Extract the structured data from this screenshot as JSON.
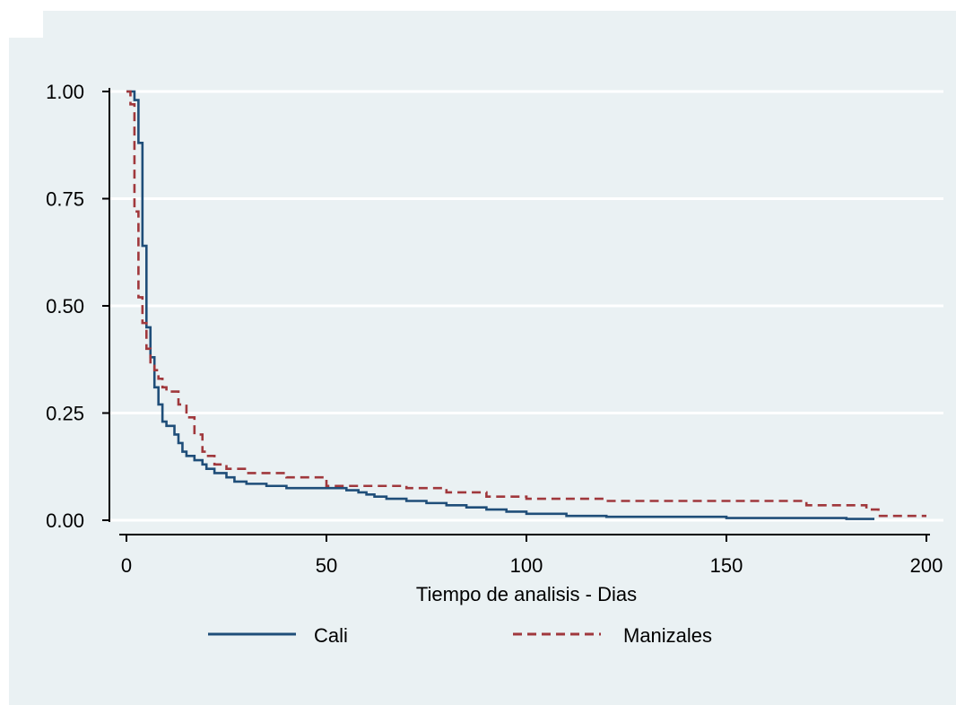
{
  "chart_data": {
    "type": "line",
    "title": "",
    "xlabel": "Tiempo de analisis - Dias",
    "ylabel": "",
    "xlim": [
      0,
      200
    ],
    "ylim": [
      0,
      1
    ],
    "x_ticks": [
      "0",
      "50",
      "100",
      "150",
      "200"
    ],
    "y_ticks": [
      "0.00",
      "0.25",
      "0.50",
      "0.75",
      "1.00"
    ],
    "grid": true,
    "legend_position": "bottom",
    "background_color": "#eaf1f3",
    "series": [
      {
        "name": "Cali",
        "color": "#1f4e79",
        "style": "solid",
        "x": [
          0,
          2,
          3,
          4,
          5,
          6,
          7,
          8,
          9,
          10,
          12,
          13,
          14,
          15,
          17,
          19,
          20,
          22,
          25,
          27,
          30,
          35,
          40,
          50,
          55,
          58,
          60,
          62,
          65,
          70,
          75,
          80,
          85,
          90,
          95,
          100,
          110,
          120,
          150,
          180,
          187
        ],
        "y": [
          1.0,
          0.98,
          0.88,
          0.64,
          0.45,
          0.38,
          0.31,
          0.27,
          0.23,
          0.22,
          0.2,
          0.18,
          0.16,
          0.15,
          0.14,
          0.13,
          0.12,
          0.11,
          0.1,
          0.09,
          0.085,
          0.08,
          0.075,
          0.075,
          0.07,
          0.065,
          0.06,
          0.055,
          0.05,
          0.045,
          0.04,
          0.035,
          0.03,
          0.025,
          0.02,
          0.015,
          0.01,
          0.008,
          0.005,
          0.003,
          0.003
        ]
      },
      {
        "name": "Manizales",
        "color": "#a0383c",
        "style": "dashed",
        "x": [
          0,
          1,
          2,
          3,
          4,
          5,
          6,
          7,
          8,
          9,
          10,
          13,
          15,
          17,
          19,
          20,
          22,
          25,
          30,
          40,
          50,
          60,
          70,
          80,
          90,
          100,
          110,
          120,
          150,
          170,
          185,
          188,
          200
        ],
        "y": [
          1.0,
          0.97,
          0.72,
          0.52,
          0.46,
          0.4,
          0.36,
          0.35,
          0.33,
          0.31,
          0.3,
          0.27,
          0.24,
          0.2,
          0.16,
          0.15,
          0.13,
          0.12,
          0.11,
          0.1,
          0.08,
          0.08,
          0.075,
          0.065,
          0.055,
          0.05,
          0.05,
          0.045,
          0.045,
          0.035,
          0.025,
          0.01,
          0.01
        ]
      }
    ]
  }
}
